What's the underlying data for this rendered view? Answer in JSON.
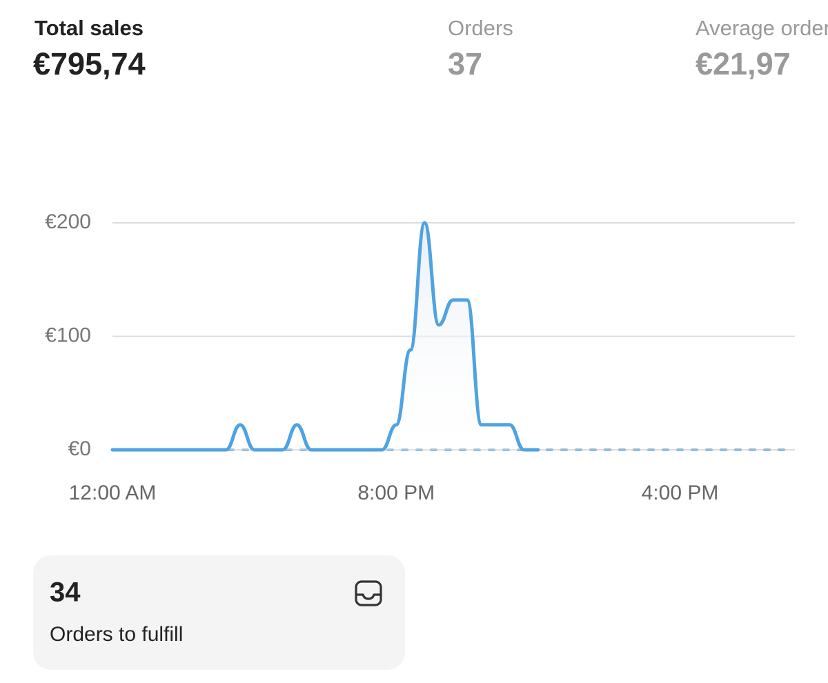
{
  "metrics": [
    {
      "label": "Total sales",
      "value": "€795,74"
    },
    {
      "label": "Orders",
      "value": "37"
    },
    {
      "label": "Average order value",
      "value": "€21,97"
    }
  ],
  "chart_data": {
    "type": "line",
    "categories": [
      "12:00 AM",
      null,
      null,
      null,
      null,
      null,
      null,
      null,
      null,
      null,
      null,
      null,
      null,
      null,
      null,
      null,
      null,
      null,
      null,
      null,
      "8:00 PM",
      null,
      null,
      null,
      null,
      null,
      null,
      null,
      null,
      null,
      null,
      null,
      null,
      null,
      null,
      null,
      null,
      null,
      null,
      null,
      "4:00 PM",
      null,
      null,
      null,
      null,
      null,
      null,
      null,
      null
    ],
    "series": [
      {
        "color": "#93bcdc",
        "style": "dashed",
        "values": [
          0,
          0,
          0,
          0,
          0,
          0,
          0,
          0,
          0,
          0,
          0,
          0,
          0,
          0,
          0,
          0,
          0,
          0,
          0,
          0,
          0,
          0,
          0,
          0,
          0,
          0,
          0,
          0,
          0,
          0,
          0,
          0,
          0,
          0,
          0,
          0,
          0,
          0,
          0,
          0,
          0,
          0,
          0,
          0,
          0,
          0,
          0,
          0,
          0
        ]
      },
      {
        "color": "#4fa3e0",
        "style": "solid",
        "values": [
          0,
          0,
          0,
          0,
          0,
          0,
          0,
          0,
          0,
          22,
          0,
          0,
          0,
          22,
          0,
          0,
          0,
          0,
          0,
          0,
          22,
          88,
          200,
          110,
          132,
          132,
          22,
          22,
          22,
          0,
          0,
          null,
          null,
          null,
          null,
          null,
          null,
          null,
          null,
          null,
          null,
          null,
          null,
          null,
          null,
          null,
          null,
          null,
          null
        ]
      }
    ],
    "ylim": [
      0,
      200
    ],
    "yticks": [
      {
        "value": 0,
        "label": "€0"
      },
      {
        "value": 100,
        "label": "€100"
      },
      {
        "value": 200,
        "label": "€200"
      }
    ],
    "grid": true
  },
  "card": {
    "value": "34",
    "label": "Orders to fulfill"
  }
}
